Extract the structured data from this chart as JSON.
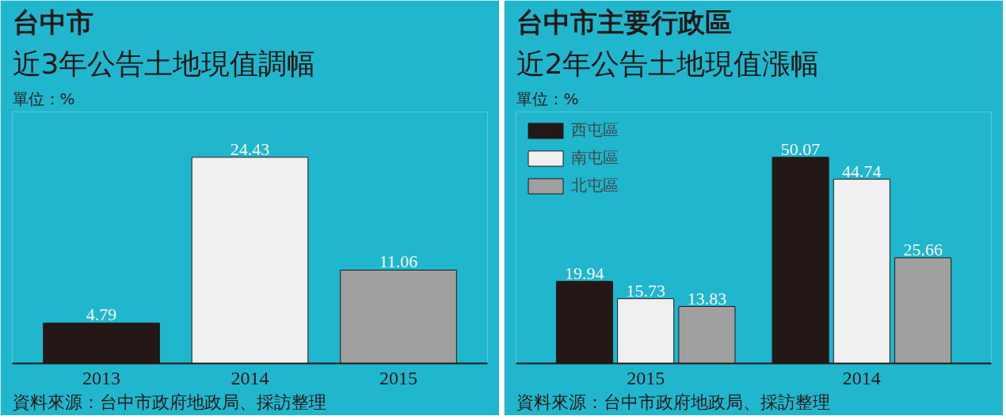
{
  "chart_data": [
    {
      "type": "bar",
      "title": "台中市",
      "subtitle": "近3年公告土地現值調幅",
      "ylabel": "單位：%",
      "categories": [
        "2013",
        "2014",
        "2015"
      ],
      "values": [
        4.79,
        24.43,
        11.06
      ],
      "colors": [
        "#231815",
        "#f0f0f0",
        "#a0a0a0"
      ],
      "data_labels": true,
      "annotations": [
        "資料來源：台中市政府地政局、採訪整理"
      ]
    },
    {
      "type": "bar",
      "title": "台中市主要行政區",
      "subtitle": "近2年公告土地現值漲幅",
      "ylabel": "單位：%",
      "categories": [
        "2015",
        "2014"
      ],
      "series": [
        {
          "name": "西屯區",
          "color": "#231815",
          "values": [
            19.94,
            50.07
          ]
        },
        {
          "name": "南屯區",
          "color": "#f0f0f0",
          "values": [
            15.73,
            44.74
          ]
        },
        {
          "name": "北屯區",
          "color": "#a0a0a0",
          "values": [
            13.83,
            25.66
          ]
        }
      ],
      "data_labels": true,
      "legend": "top left",
      "annotations": [
        "資料來源：台中市政府地政局、採訪整理"
      ]
    }
  ]
}
